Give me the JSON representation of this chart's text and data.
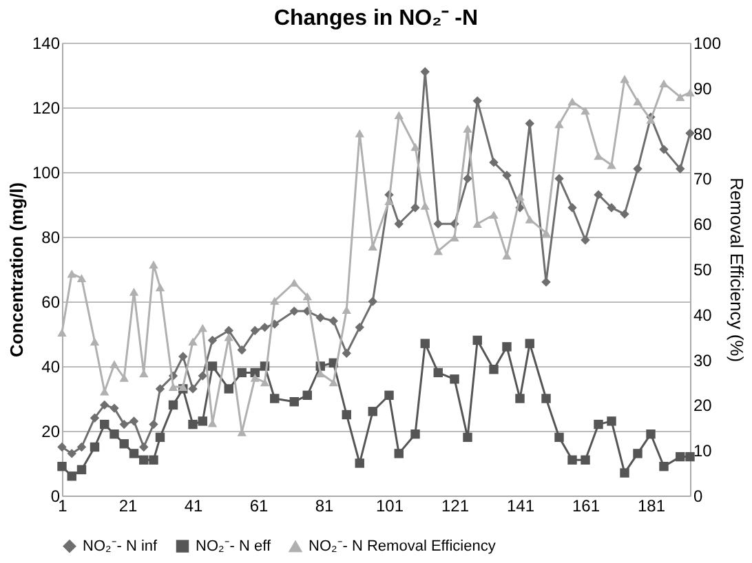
{
  "chart_data": {
    "type": "line",
    "title": "Changes in NO₂⁻ -N",
    "ylabel": "Concentration (mg/l)",
    "y2label": "Removal  Efficiency (%)",
    "x": [
      1,
      4,
      7,
      11,
      14,
      17,
      20,
      23,
      26,
      29,
      31,
      35,
      38,
      41,
      44,
      47,
      52,
      56,
      60,
      63,
      66,
      72,
      76,
      80,
      84,
      88,
      92,
      96,
      101,
      104,
      109,
      112,
      116,
      121,
      125,
      128,
      133,
      137,
      141,
      144,
      149,
      153,
      157,
      161,
      165,
      169,
      173,
      177,
      181,
      185,
      190,
      193
    ],
    "xlim": [
      1,
      193
    ],
    "xticks": [
      1,
      21,
      41,
      61,
      81,
      101,
      121,
      141,
      161,
      181
    ],
    "ylim": [
      0,
      140
    ],
    "yticks": [
      0,
      20,
      40,
      60,
      80,
      100,
      120,
      140
    ],
    "y2lim": [
      0,
      100
    ],
    "y2ticks": [
      0,
      10,
      20,
      30,
      40,
      50,
      60,
      70,
      80,
      90,
      100
    ],
    "grid": "y",
    "legend": "bottom",
    "line_style": "solid",
    "series": [
      {
        "name": "NO₂⁻- N inf",
        "color": "#6e6e6e",
        "marker": "diamond",
        "values": [
          15,
          13,
          15,
          24,
          28,
          27,
          22,
          23,
          15,
          22,
          33,
          37,
          43,
          33,
          37,
          48,
          51,
          45,
          51,
          52,
          53,
          57,
          57,
          55,
          54,
          44,
          52,
          60,
          93,
          84,
          89,
          131,
          84,
          84,
          98,
          122,
          103,
          99,
          89,
          115,
          66,
          98,
          89,
          79,
          93,
          89,
          87,
          101,
          117,
          107,
          101,
          112
        ]
      },
      {
        "name": "NO₂⁻- N eff",
        "color": "#555555",
        "marker": "square",
        "values": [
          9,
          6,
          8,
          15,
          22,
          19,
          16,
          13,
          11,
          11,
          18,
          28,
          33,
          22,
          23,
          40,
          33,
          38,
          38,
          40,
          30,
          29,
          31,
          40,
          41,
          25,
          10,
          26,
          31,
          13,
          19,
          47,
          38,
          36,
          18,
          48,
          39,
          46,
          30,
          47,
          30,
          18,
          11,
          11,
          22,
          23,
          7,
          13,
          19,
          9,
          12,
          12
        ]
      },
      {
        "name": "NO₂⁻- N Removal Efficiency",
        "color": "#b0b0b0",
        "marker": "triangle",
        "axis": "y2",
        "values": [
          36,
          49,
          48,
          34,
          23,
          29,
          26,
          45,
          27,
          51,
          46,
          24,
          24,
          34,
          37,
          16,
          35,
          14,
          26,
          25,
          43,
          47,
          44,
          27,
          25,
          41,
          80,
          55,
          65,
          84,
          77,
          64,
          54,
          57,
          81,
          60,
          62,
          53,
          66,
          61,
          58,
          82,
          87,
          85,
          75,
          73,
          92,
          87,
          83,
          91,
          88,
          89
        ]
      }
    ]
  }
}
